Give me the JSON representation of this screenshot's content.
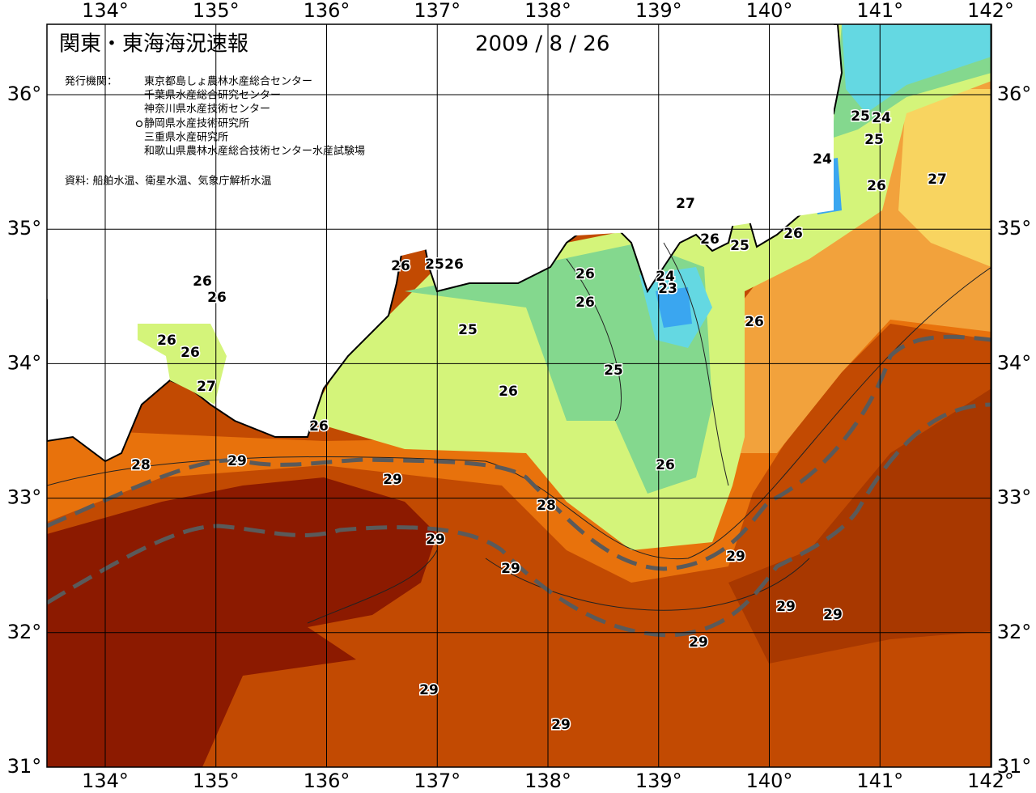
{
  "header": {
    "title": "関東・東海海況速報",
    "date": "2009 / 8 / 26",
    "agencies_label": "発行機関：",
    "agencies": [
      "東京都島しょ農林水産総合センター",
      "千葉県水産総合研究センター",
      "神奈川県水産技術センター",
      "静岡県水産技術研究所",
      "三重県水産研究所",
      "和歌山県農林水産総合技術センター水産試験場"
    ],
    "source": "資料: 船舶水温、衛星水温、気象庁解析水温"
  },
  "map": {
    "lon_ticks": [
      {
        "value": 134,
        "label": "134°"
      },
      {
        "value": 135,
        "label": "135°"
      },
      {
        "value": 136,
        "label": "136°"
      },
      {
        "value": 137,
        "label": "137°"
      },
      {
        "value": 138,
        "label": "138°"
      },
      {
        "value": 139,
        "label": "139°"
      },
      {
        "value": 140,
        "label": "140°"
      },
      {
        "value": 141,
        "label": "141°"
      },
      {
        "value": 142,
        "label": "142°"
      }
    ],
    "lat_ticks": [
      {
        "value": 31,
        "label": "31°"
      },
      {
        "value": 32,
        "label": "32°"
      },
      {
        "value": 33,
        "label": "33°"
      },
      {
        "value": 34,
        "label": "34°"
      },
      {
        "value": 35,
        "label": "35°"
      },
      {
        "value": 36,
        "label": "36°"
      }
    ],
    "contour_labels": [
      "26",
      "26",
      "26",
      "26",
      "27",
      "26",
      "28",
      "29",
      "29",
      "28",
      "29",
      "29",
      "26",
      "25",
      "26",
      "26",
      "26",
      "25",
      "24",
      "23",
      "25",
      "26",
      "26",
      "27",
      "26",
      "25",
      "26",
      "26",
      "24",
      "25",
      "24",
      "25",
      "26",
      "27",
      "29",
      "29",
      "29",
      "29",
      "29",
      "29"
    ]
  }
}
